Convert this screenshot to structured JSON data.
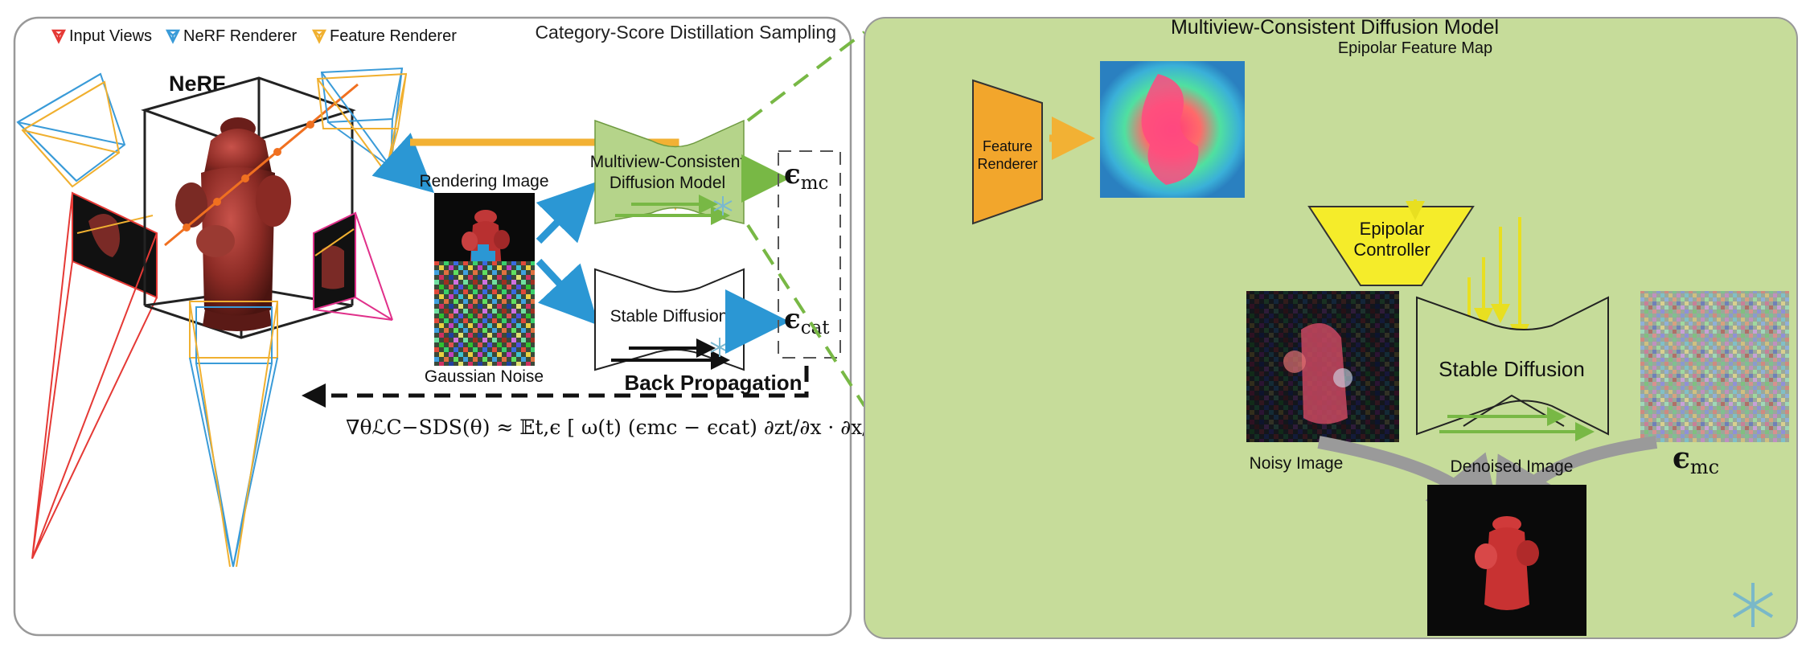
{
  "legend": {
    "input_views": "Input Views",
    "nerf_renderer": "NeRF Renderer",
    "feature_renderer": "Feature Renderer"
  },
  "left_panel": {
    "title": "Category-Score Distillation Sampling",
    "nerf_label": "NeRF",
    "rendering_image": "Rendering Image",
    "gaussian_noise": "Gaussian Noise",
    "mvcd_line1": "Multiview-Consistent",
    "mvcd_line2": "Diffusion Model",
    "stable_diffusion": "Stable Diffusion",
    "back_propagation": "Back Propagation",
    "eps_mc_sym": "ϵ",
    "eps_mc_sub": "mc",
    "eps_cat_sym": "ϵ",
    "eps_cat_sub": "cat",
    "formula": "∇θℒC−SDS(θ) ≈ 𝔼t,ϵ [ ω(t) (ϵmc − ϵcat) ∂zt/∂x · ∂x/∂θ ]"
  },
  "right_panel": {
    "title": "Multiview-Consistent Diffusion Model",
    "epipolar_feature_map": "Epipolar Feature Map",
    "feature_renderer_line1": "Feature",
    "feature_renderer_line2": "Renderer",
    "epipolar_line1": "Epipolar",
    "epipolar_line2": "Controller",
    "stable_diffusion": "Stable Diffusion",
    "noisy_image": "Noisy Image",
    "denoised_image": "Denoised Image",
    "eps_sym": "ϵ",
    "eps_sub": "mc"
  },
  "colors": {
    "input_views": "#e53935",
    "nerf_renderer": "#3a9bd8",
    "feature_renderer": "#f0b030",
    "panel_green": "#c6dc9a",
    "arrow_blue": "#2b97d4",
    "arrow_orange": "#f2b134",
    "arrow_green": "#78b845",
    "controller_yellow": "#f5ec2a"
  }
}
